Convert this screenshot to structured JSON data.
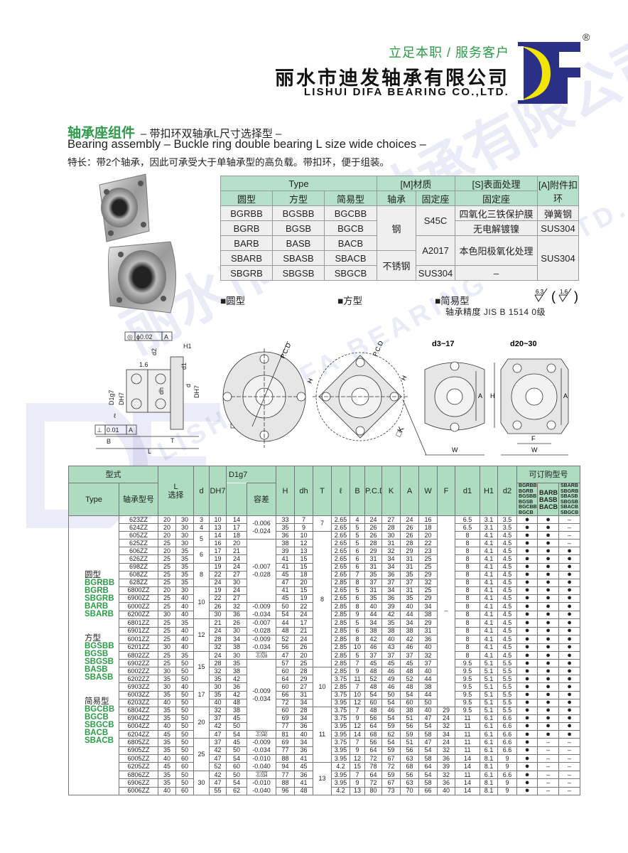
{
  "brand": {
    "tagline": "立足本职 / 服务客户",
    "company_cn": "丽水市迪发轴承有限公司",
    "company_en": "LISHUI DIFA BEARING CO.,LTD.",
    "registered": "®",
    "logo": "DF",
    "logo_colors": {
      "navy": "#2b2f86",
      "yellow": "#f2e600"
    }
  },
  "watermark": {
    "cn": "丽水市迪发轴承有限公司",
    "en": "LISHUI DIFA BEARING CO.,LTD."
  },
  "heading": {
    "title": "轴承座组件",
    "subtitle": "– 带扣环双轴承L尺寸选择型 –",
    "english": "Bearing assembly – Buckle ring double bearing L size wide choices –",
    "features": "特长：带2个轴承，因此可承受大于单轴承型的高负载。带扣环，便于组装。"
  },
  "material_table": {
    "h_type": "Type",
    "h_material": "[M]材质",
    "h_surface": "[S]表面处理",
    "h_accessory": "[A]附件扣环",
    "h_round": "圆型",
    "h_square": "方型",
    "h_simple": "简易型",
    "h_bearing": "轴承",
    "h_housing": "固定座",
    "h_surface_housing": "固定座",
    "rows": [
      [
        "BGRBB",
        "BGSBB",
        "BGCBB"
      ],
      [
        "BGRB",
        "BGSB",
        "BGCB"
      ],
      [
        "BARB",
        "BASB",
        "BACB"
      ],
      [
        "SBARB",
        "SBASB",
        "SBACB"
      ],
      [
        "SBGRB",
        "SBGSB",
        "SBGCB"
      ]
    ],
    "steel": "钢",
    "stainless": "不锈钢",
    "s45c": "S45C",
    "a2017": "A2017",
    "sus304_housing": "SUS304",
    "surf1": "四氧化三铁保护膜",
    "surf2": "无电解镀镍",
    "surf3": "本色阳极氧化处理",
    "surf4": "–",
    "acc1": "弹簧钢",
    "acc2": "SUS304",
    "acc3": "SUS304"
  },
  "labels": {
    "round": "■圆型",
    "square": "■方型",
    "simple": "■简易型",
    "roughness1": "6.3",
    "roughness2": "1.6",
    "precision": "轴承精度  JIS  B  1514  0级"
  },
  "drawing": {
    "concentricity": "◎",
    "phi": "ϕ0.02",
    "datum": "A",
    "parallel": "⊥",
    "parallel_val": "0.01",
    "H1": "H1",
    "d2": "d2",
    "d1": "d1",
    "r16": "1.6",
    "D1g7": "D1g7",
    "DH7": "DH7",
    "dh": "dh",
    "d": "d",
    "l": "ℓ",
    "B": "B",
    "T": "T",
    "L": "L",
    "PCD": "P.C.D",
    "H": "H",
    "K": "□K",
    "d3_17": "d3~17",
    "d20_30": "d20~30",
    "A": "A",
    "W": "W",
    "F": "F"
  },
  "spec_table": {
    "h_style": "型式",
    "h_type": "Type",
    "h_model": "轴承型号",
    "h_L": "L",
    "h_L2": "选择",
    "h_d": "d",
    "h_DH7": "DH7",
    "h_D1g7": "D1g7",
    "h_tol": "容差",
    "h_cols": [
      "H",
      "dh",
      "T",
      "ℓ",
      "B",
      "P.C.D",
      "K",
      "A",
      "W",
      "F",
      "d1",
      "H1",
      "d2"
    ],
    "h_order": "可订购型号",
    "h_order_cols": [
      "BGRBB BGRB BGSBB BGSB BGCBB BGCB",
      "BARB BASB BACB",
      "SBARB SBGRB SBASB SBGSB SBACB SBGCB"
    ],
    "type_groups": [
      {
        "label": "圆型",
        "models": [
          "BGRBB",
          "BGRB",
          "SBGRB",
          "BARB",
          "SBARB"
        ]
      },
      {
        "label": "方型",
        "models": [
          "BGSBB",
          "BGSB",
          "SBGSB",
          "BASB",
          "SBASB"
        ]
      },
      {
        "label": "简易型",
        "models": [
          "BGCBB",
          "BGCB",
          "SBGCB",
          "BACB",
          "SBACB"
        ]
      }
    ],
    "columns": [
      "model",
      "L1",
      "L2",
      "DH7",
      "D1g7",
      "H",
      "dh",
      "l",
      "B",
      "PCD",
      "K",
      "A",
      "W",
      "d1",
      "H1",
      "d2",
      "o1",
      "o2",
      "o3"
    ],
    "rows": [
      [
        "623ZZ",
        "20",
        "30",
        "10",
        "14",
        "33",
        "7",
        "2.65",
        "4",
        "24",
        "27",
        "24",
        "16",
        "6.5",
        "3.1",
        "3.5",
        "●",
        "●",
        "–"
      ],
      [
        "624ZZ",
        "20",
        "30",
        "13",
        "17",
        "35",
        "9",
        "2.65",
        "5",
        "26",
        "28",
        "26",
        "18",
        "6.5",
        "3.1",
        "3.5",
        "●",
        "●",
        "–"
      ],
      [
        "605ZZ",
        "20",
        "30",
        "14",
        "18",
        "36",
        "10",
        "2.65",
        "5",
        "26",
        "30",
        "26",
        "20",
        "8",
        "4.1",
        "4.5",
        "●",
        "●",
        "–"
      ],
      [
        "625ZZ",
        "25",
        "30",
        "16",
        "20",
        "38",
        "12",
        "2.65",
        "5",
        "28",
        "31",
        "28",
        "22",
        "8",
        "4.1",
        "4.5",
        "●",
        "●",
        "–"
      ],
      [
        "606ZZ",
        "20",
        "35",
        "17",
        "21",
        "39",
        "13",
        "2.65",
        "6",
        "29",
        "32",
        "29",
        "23",
        "8",
        "4.1",
        "4.5",
        "●",
        "●",
        "●"
      ],
      [
        "626ZZ",
        "25",
        "35",
        "19",
        "24",
        "41",
        "15",
        "2.65",
        "6",
        "31",
        "34",
        "31",
        "25",
        "8",
        "4.1",
        "4.5",
        "●",
        "●",
        "●"
      ],
      [
        "698ZZ",
        "25",
        "35",
        "19",
        "24",
        "41",
        "15",
        "2.65",
        "6",
        "31",
        "34",
        "31",
        "25",
        "8",
        "4.1",
        "4.5",
        "●",
        "●",
        "●"
      ],
      [
        "608ZZ",
        "25",
        "35",
        "22",
        "27",
        "45",
        "18",
        "2.65",
        "7",
        "35",
        "36",
        "35",
        "29",
        "8",
        "4.1",
        "4.5",
        "●",
        "●",
        "●"
      ],
      [
        "628ZZ",
        "25",
        "35",
        "24",
        "30",
        "47",
        "20",
        "2.85",
        "8",
        "37",
        "37",
        "37",
        "32",
        "8",
        "4.1",
        "4.5",
        "●",
        "●",
        "●"
      ],
      [
        "6800ZZ",
        "20",
        "30",
        "19",
        "24",
        "41",
        "15",
        "2.65",
        "5",
        "31",
        "34",
        "31",
        "25",
        "8",
        "4.1",
        "4.5",
        "●",
        "●",
        "●"
      ],
      [
        "6900ZZ",
        "25",
        "40",
        "22",
        "27",
        "45",
        "19",
        "2.65",
        "6",
        "35",
        "36",
        "35",
        "29",
        "8",
        "4.1",
        "4.5",
        "●",
        "●",
        "●"
      ],
      [
        "6000ZZ",
        "25",
        "40",
        "26",
        "32",
        "50",
        "22",
        "2.85",
        "8",
        "40",
        "39",
        "40",
        "34",
        "8",
        "4.1",
        "4.5",
        "●",
        "●",
        "●"
      ],
      [
        "6200ZZ",
        "30",
        "40",
        "30",
        "36",
        "54",
        "24",
        "2.85",
        "9",
        "44",
        "42",
        "44",
        "38",
        "8",
        "4.1",
        "4.5",
        "●",
        "●",
        "●"
      ],
      [
        "6801ZZ",
        "25",
        "35",
        "21",
        "26",
        "44",
        "17",
        "2.85",
        "5",
        "34",
        "35",
        "34",
        "29",
        "8",
        "4.1",
        "4.5",
        "●",
        "●",
        "●"
      ],
      [
        "6901ZZ",
        "25",
        "40",
        "24",
        "30",
        "48",
        "21",
        "2.85",
        "6",
        "38",
        "38",
        "38",
        "31",
        "8",
        "4.1",
        "4.5",
        "●",
        "●",
        "●"
      ],
      [
        "6001ZZ",
        "25",
        "40",
        "28",
        "34",
        "52",
        "24",
        "2.85",
        "8",
        "42",
        "40",
        "42",
        "36",
        "8",
        "4.1",
        "4.5",
        "●",
        "●",
        "●"
      ],
      [
        "6201ZZ",
        "30",
        "40",
        "32",
        "38",
        "56",
        "26",
        "2.85",
        "10",
        "46",
        "43",
        "46",
        "40",
        "8",
        "4.1",
        "4.5",
        "●",
        "●",
        "●"
      ],
      [
        "6802ZZ",
        "25",
        "35",
        "24",
        "30",
        "47",
        "20",
        "2.85",
        "5",
        "37",
        "37",
        "37",
        "32",
        "8",
        "4.1",
        "4.5",
        "●",
        "●",
        "●"
      ],
      [
        "6902ZZ",
        "25",
        "50",
        "28",
        "35",
        "57",
        "25",
        "2.85",
        "7",
        "45",
        "45",
        "45",
        "37",
        "9.5",
        "5.1",
        "5.5",
        "●",
        "●",
        "●"
      ],
      [
        "6002ZZ",
        "30",
        "50",
        "32",
        "38",
        "60",
        "28",
        "2.85",
        "9",
        "48",
        "46",
        "48",
        "40",
        "9.5",
        "5.1",
        "5.5",
        "●",
        "●",
        "●"
      ],
      [
        "6202ZZ",
        "35",
        "50",
        "35",
        "42",
        "64",
        "29",
        "3.75",
        "11",
        "52",
        "49",
        "52",
        "44",
        "9.5",
        "5.1",
        "5.5",
        "●",
        "●",
        "●"
      ],
      [
        "6903ZZ",
        "30",
        "40",
        "30",
        "36",
        "60",
        "27",
        "2.85",
        "7",
        "48",
        "46",
        "48",
        "38",
        "9.5",
        "5.1",
        "5.5",
        "●",
        "●",
        "●"
      ],
      [
        "6003ZZ",
        "35",
        "50",
        "35",
        "42",
        "66",
        "31",
        "3.75",
        "10",
        "54",
        "50",
        "54",
        "44",
        "9.5",
        "5.1",
        "5.5",
        "●",
        "●",
        "●"
      ],
      [
        "6203ZZ",
        "40",
        "50",
        "40",
        "48",
        "72",
        "34",
        "3.95",
        "12",
        "60",
        "54",
        "60",
        "50",
        "9.5",
        "5.1",
        "5.5",
        "●",
        "●",
        "●"
      ],
      [
        "6804ZZ",
        "35",
        "50",
        "32",
        "38",
        "60",
        "28",
        "3.75",
        "7",
        "48",
        "46",
        "38",
        "40",
        "9.5",
        "5.1",
        "5.5",
        "●",
        "●",
        "●"
      ],
      [
        "6904ZZ",
        "35",
        "50",
        "37",
        "45",
        "69",
        "34",
        "3.75",
        "9",
        "56",
        "54",
        "51",
        "47",
        "11",
        "6.1",
        "6.6",
        "●",
        "●",
        "●"
      ],
      [
        "6004ZZ",
        "40",
        "50",
        "42",
        "50",
        "77",
        "36",
        "3.95",
        "12",
        "64",
        "59",
        "56",
        "54",
        "11",
        "6.1",
        "6.6",
        "●",
        "●",
        "●"
      ],
      [
        "6204ZZ",
        "45",
        "50",
        "47",
        "54",
        "81",
        "40",
        "3.95",
        "14",
        "68",
        "62",
        "59",
        "58",
        "11",
        "6.1",
        "6.6",
        "●",
        "●",
        "●"
      ],
      [
        "6805ZZ",
        "35",
        "50",
        "37",
        "45",
        "69",
        "34",
        "3.75",
        "7",
        "56",
        "54",
        "51",
        "47",
        "11",
        "6.1",
        "6.6",
        "●",
        "–",
        "–"
      ],
      [
        "6905ZZ",
        "35",
        "50",
        "42",
        "50",
        "77",
        "36",
        "3.95",
        "9",
        "64",
        "59",
        "56",
        "54",
        "11",
        "6.1",
        "6.6",
        "●",
        "–",
        "–"
      ],
      [
        "6005ZZ",
        "40",
        "60",
        "47",
        "54",
        "88",
        "41",
        "3.95",
        "12",
        "72",
        "67",
        "63",
        "58",
        "14",
        "8.1",
        "9",
        "●",
        "–",
        "–"
      ],
      [
        "6205ZZ",
        "45",
        "60",
        "52",
        "60",
        "94",
        "45",
        "4.2",
        "15",
        "78",
        "72",
        "68",
        "64",
        "14",
        "8.1",
        "9",
        "●",
        "–",
        "–"
      ],
      [
        "6806ZZ",
        "35",
        "50",
        "42",
        "50",
        "77",
        "36",
        "3.95",
        "7",
        "64",
        "59",
        "56",
        "54",
        "11",
        "6.1",
        "6.6",
        "●",
        "–",
        "–"
      ],
      [
        "6906ZZ",
        "35",
        "50",
        "47",
        "54",
        "88",
        "41",
        "3.95",
        "9",
        "72",
        "67",
        "63",
        "58",
        "14",
        "8.1",
        "9",
        "●",
        "–",
        "–"
      ],
      [
        "6006ZZ",
        "40",
        "60",
        "55",
        "62",
        "96",
        "48",
        "4.2",
        "13",
        "80",
        "73",
        "70",
        "66",
        "14",
        "8.1",
        "9",
        "●",
        "–",
        "–"
      ]
    ],
    "d_groups": [
      {
        "value": "3",
        "count": 1
      },
      {
        "value": "4",
        "count": 1
      },
      {
        "value": "5",
        "count": 2
      },
      {
        "value": "6",
        "count": 2
      },
      {
        "value": "8",
        "count": 3
      },
      {
        "value": "10",
        "count": 4
      },
      {
        "value": "12",
        "count": 4
      },
      {
        "value": "15",
        "count": 4
      },
      {
        "value": "17",
        "count": 3
      },
      {
        "value": "20",
        "count": 4
      },
      {
        "value": "25",
        "count": 4
      },
      {
        "value": "30",
        "count": 3
      }
    ],
    "tol_groups": [
      {
        "upper": "-0.006",
        "lower": "-0.024",
        "count": 3
      },
      {
        "upper": "-0.007",
        "lower": "-0.028",
        "count": 8
      },
      {
        "upper": "-0.009",
        "lower": "-0.034",
        "count": 2
      },
      {
        "upper": "-0.007",
        "lower": "-0.028",
        "count": 2
      },
      {
        "upper": "-0.009",
        "lower": "-0.034",
        "count": 2
      },
      {
        "upper": "-0.007",
        "lower": "-0.028",
        "count": 1
      },
      {
        "upper": "-0.009",
        "lower": "-0.034",
        "count": 9
      },
      {
        "upper": "-0.010",
        "lower": "-0.040",
        "count": 1
      },
      {
        "upper": "-0.009",
        "lower": "-0.034",
        "count": 2
      },
      {
        "upper": "-0.010",
        "lower": "-0.040",
        "count": 2
      },
      {
        "upper": "-0.009",
        "lower": "-0.034",
        "count": 1
      },
      {
        "upper": "-0.010",
        "lower": "-0.040",
        "count": 2
      }
    ],
    "T_groups": [
      {
        "value": "7",
        "count": 2
      },
      {
        "value": "8",
        "count": 17
      },
      {
        "value": "10",
        "count": 5
      },
      {
        "value": "11",
        "count": 7
      },
      {
        "value": "13",
        "count": 4
      }
    ],
    "F_groups": [
      {
        "value": "–",
        "count": 24
      },
      {
        "value": "29",
        "count": 1
      },
      {
        "value": "24",
        "count": 1
      },
      {
        "value": "32",
        "count": 1
      },
      {
        "value": "34",
        "count": 1
      },
      {
        "value": "24",
        "count": 1
      },
      {
        "value": "32",
        "count": 1
      },
      {
        "value": "36",
        "count": 1
      },
      {
        "value": "39",
        "count": 1
      },
      {
        "value": "32",
        "count": 1
      },
      {
        "value": "36",
        "count": 1
      },
      {
        "value": "40",
        "count": 1
      }
    ]
  }
}
